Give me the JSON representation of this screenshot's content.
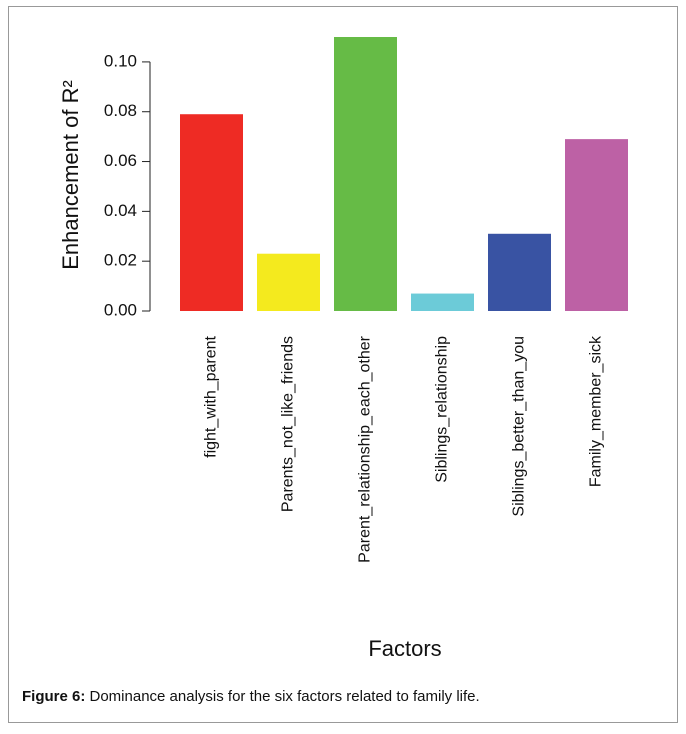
{
  "chart_data": {
    "type": "bar",
    "y_label": "Enhancement  of  R²",
    "x_label": "Factors",
    "categories": [
      "fight_with_parent",
      "Parents_not_like_friends",
      "Parent_relationship_each_other",
      "Siblings_relationship",
      "Siblings_better_than_you",
      "Family_member_sick"
    ],
    "values": [
      0.079,
      0.023,
      0.11,
      0.007,
      0.031,
      0.069
    ],
    "colors": [
      "#ee2b24",
      "#f4ea1e",
      "#66bb46",
      "#6ccbd8",
      "#3953a3",
      "#bd61a5"
    ],
    "ylim": [
      0,
      0.11
    ],
    "yticks": [
      {
        "value": 0,
        "label": "0.00"
      },
      {
        "value": 0.02,
        "label": "0.02"
      },
      {
        "value": 0.04,
        "label": "0.04"
      },
      {
        "value": 0.06,
        "label": "0.06"
      },
      {
        "value": 0.08,
        "label": "0.08"
      },
      {
        "value": 0.1,
        "label": "0.10"
      }
    ]
  },
  "caption": {
    "label": "Figure 6:",
    "text": " Dominance analysis for the six factors related to family life."
  }
}
